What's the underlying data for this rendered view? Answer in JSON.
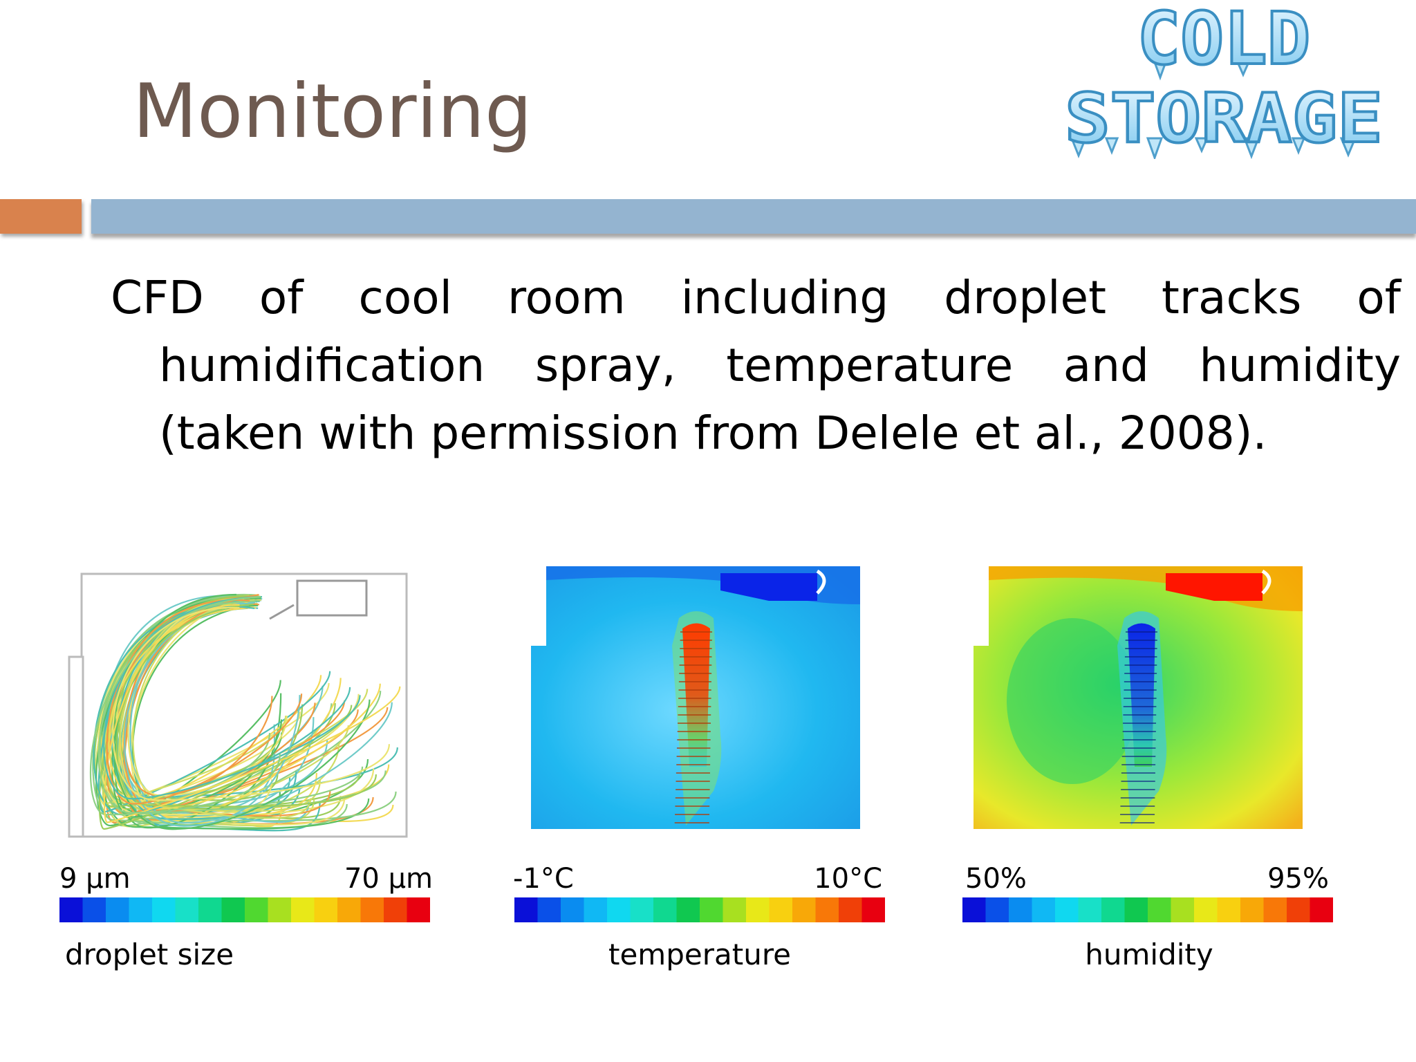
{
  "slide": {
    "title": "Monitoring",
    "body": "CFD of cool room including droplet tracks of humidification spray, temperature and humidity (taken with permission from Delele et al., 2008).",
    "logo_text": [
      "COLD",
      "STORAGE"
    ]
  },
  "colors": {
    "title": "#6e5a50",
    "accent_orange": "#d9824d",
    "accent_blue": "#94b4d0",
    "logo_ice": "#a8dcf5"
  },
  "panels": [
    {
      "scale_min": "9 µm",
      "scale_max": "70 µm",
      "caption": "droplet size"
    },
    {
      "scale_min": "-1°C",
      "scale_max": "10°C",
      "caption": "temperature"
    },
    {
      "scale_min": "50%",
      "scale_max": "95%",
      "caption": "humidity"
    }
  ]
}
